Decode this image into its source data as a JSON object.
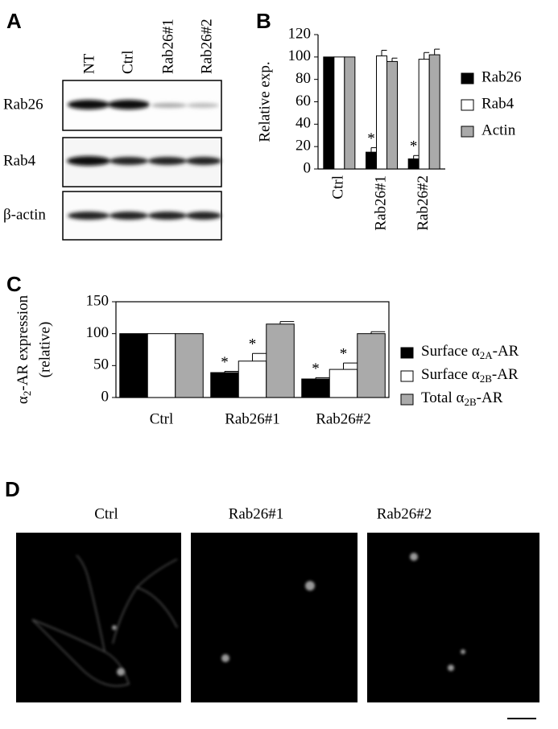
{
  "panels": {
    "A": {
      "letter": "A",
      "lanes": [
        "NT",
        "Ctrl",
        "Rab26#1",
        "Rab26#2"
      ],
      "rows": [
        "Rab26",
        "Rab4",
        "β-actin"
      ]
    },
    "B": {
      "letter": "B"
    },
    "C": {
      "letter": "C"
    },
    "D": {
      "letter": "D",
      "labels": [
        "Ctrl",
        "Rab26#1",
        "Rab26#2"
      ]
    }
  },
  "chart_data": [
    {
      "type": "bar",
      "y_label": "Relative exp.",
      "categories": [
        "Ctrl",
        "Rab26#1",
        "Rab26#2"
      ],
      "series": [
        {
          "name": "Rab26",
          "color": "#000000",
          "values": [
            100,
            15,
            9
          ],
          "errors": [
            0,
            4,
            3
          ],
          "significance": [
            null,
            "*",
            "*"
          ]
        },
        {
          "name": "Rab4",
          "color": "#ffffff",
          "values": [
            100,
            101,
            98
          ],
          "errors": [
            0,
            5,
            6
          ]
        },
        {
          "name": "Actin",
          "color": "#aaaaaa",
          "values": [
            100,
            96,
            102
          ],
          "errors": [
            0,
            3,
            5
          ]
        }
      ],
      "ylim": [
        0,
        120
      ],
      "yticks": [
        0,
        20,
        40,
        60,
        80,
        100,
        120
      ],
      "legend": "right"
    },
    {
      "type": "bar",
      "y_label": [
        "α2-AR expression",
        "(relative)"
      ],
      "categories": [
        "Ctrl",
        "Rab26#1",
        "Rab26#2"
      ],
      "series": [
        {
          "name": "Surface α2A-AR",
          "color": "#000000",
          "values": [
            100,
            39,
            29
          ],
          "errors": [
            0,
            2,
            2
          ],
          "significance": [
            null,
            "*",
            "*"
          ]
        },
        {
          "name": "Surface α2B-AR",
          "color": "#ffffff",
          "values": [
            100,
            57,
            44
          ],
          "errors": [
            0,
            12,
            10
          ],
          "significance": [
            null,
            "*",
            "*"
          ]
        },
        {
          "name": "Total α2B-AR",
          "color": "#aaaaaa",
          "values": [
            100,
            115,
            100
          ],
          "errors": [
            0,
            4,
            3
          ]
        }
      ],
      "ylim": [
        0,
        150
      ],
      "yticks": [
        0,
        50,
        100,
        150
      ],
      "legend": "right",
      "frame": true
    }
  ]
}
